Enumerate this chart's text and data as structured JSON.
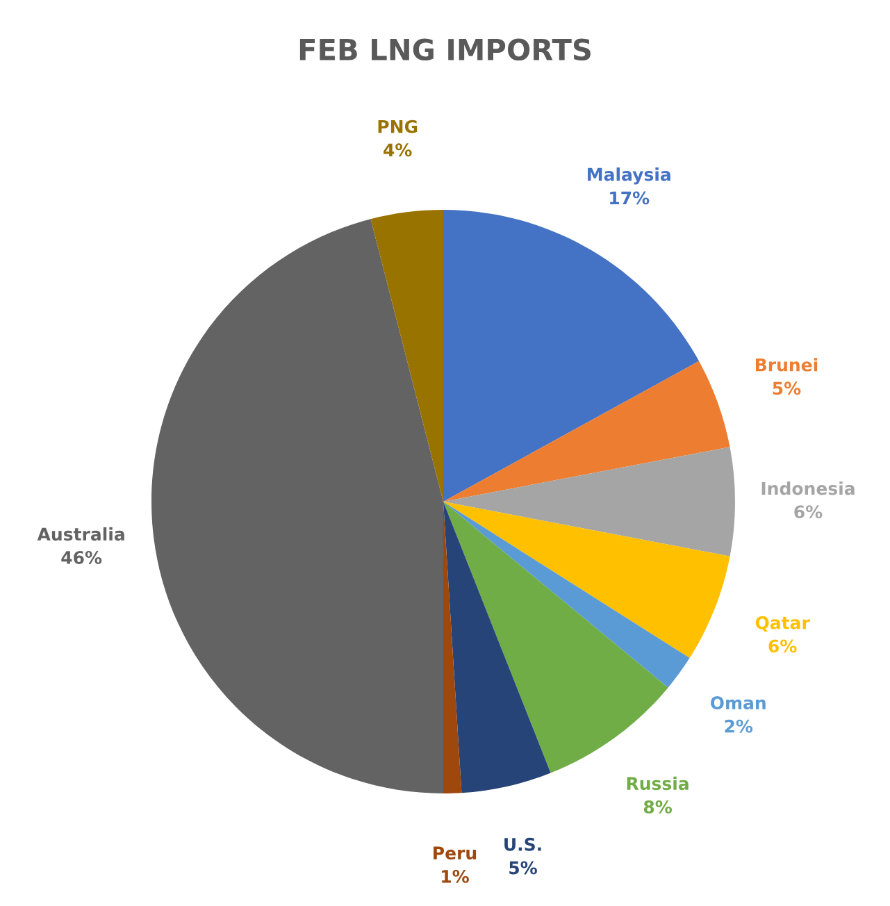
{
  "chart_data": {
    "type": "pie",
    "title": "FEB LNG IMPORTS",
    "categories": [
      "Malaysia",
      "Brunei",
      "Indonesia",
      "Qatar",
      "Oman",
      "Russia",
      "U.S.",
      "Peru",
      "Australia",
      "PNG"
    ],
    "values": [
      17,
      5,
      6,
      6,
      2,
      8,
      5,
      1,
      46,
      4
    ],
    "value_labels": [
      "17%",
      "5%",
      "6%",
      "6%",
      "2%",
      "8%",
      "5%",
      "1%",
      "46%",
      "4%"
    ],
    "colors": [
      "#4472c4",
      "#ed7d31",
      "#a5a5a5",
      "#ffc000",
      "#5b9bd5",
      "#70ad47",
      "#264478",
      "#9e480e",
      "#636363",
      "#997300"
    ]
  }
}
